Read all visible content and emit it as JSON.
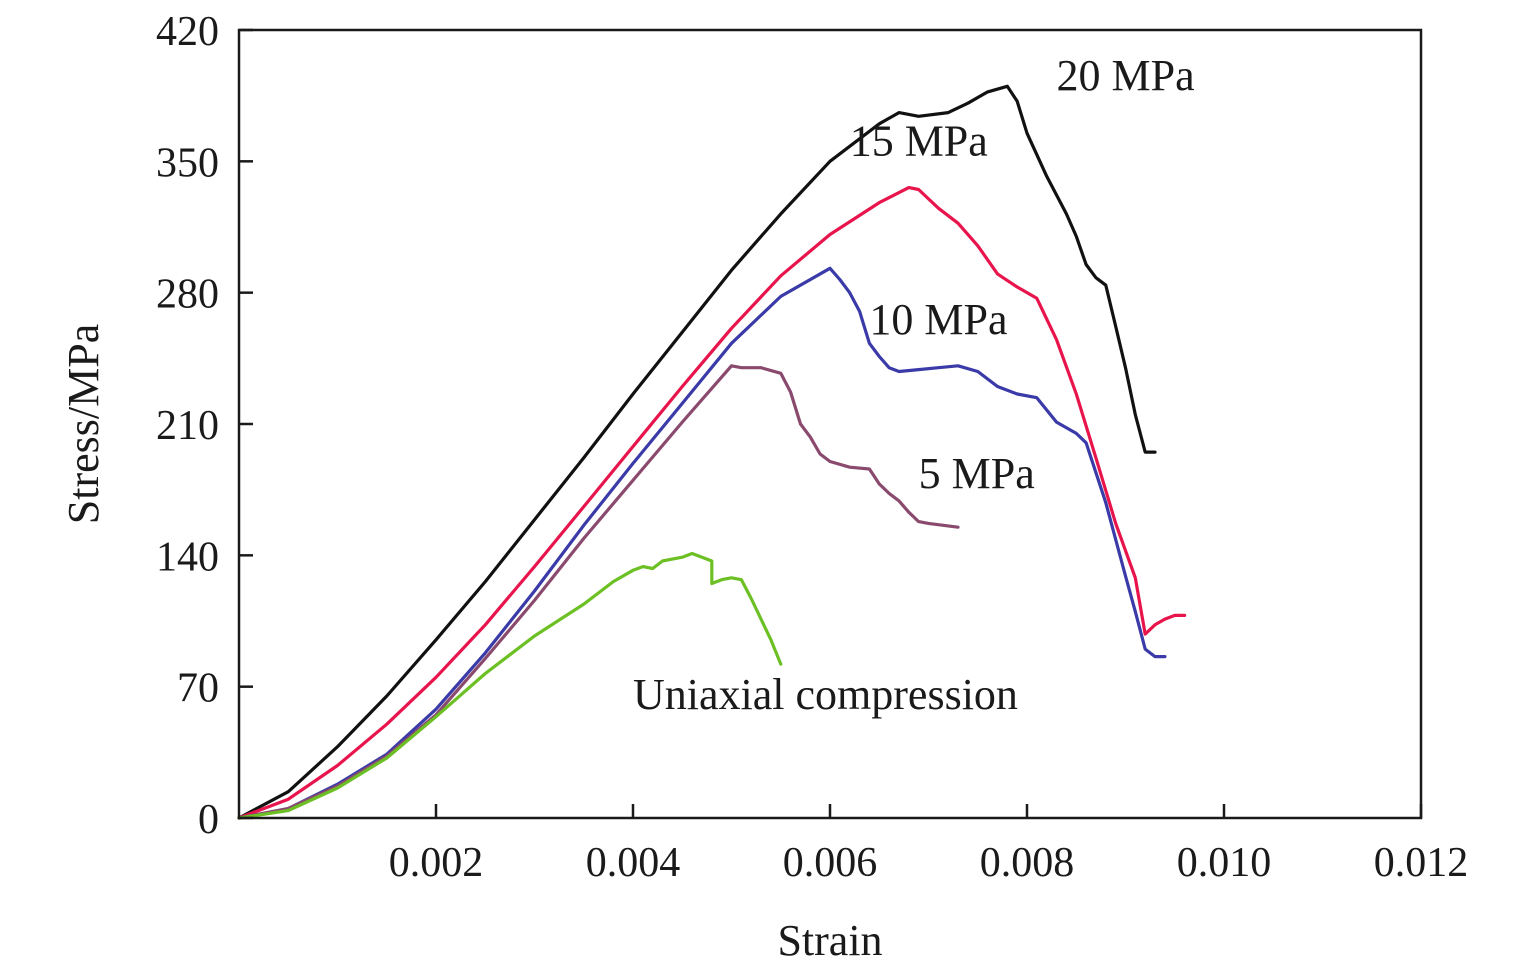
{
  "chart_data": {
    "type": "line",
    "title": "",
    "xlabel": "Strain",
    "ylabel": "Stress/MPa",
    "xlim": [
      0,
      0.012
    ],
    "ylim": [
      0,
      420
    ],
    "x_ticks": [
      0.002,
      0.004,
      0.006,
      0.008,
      0.01,
      0.012
    ],
    "x_tick_labels": [
      "0.002",
      "0.004",
      "0.006",
      "0.008",
      "0.010",
      "0.012"
    ],
    "y_ticks": [
      0,
      70,
      140,
      210,
      280,
      350,
      420
    ],
    "y_tick_labels": [
      "0",
      "70",
      "140",
      "210",
      "280",
      "350",
      "420"
    ],
    "grid": false,
    "series": [
      {
        "name": "20 MPa",
        "color": "#111111",
        "label_pos": [
          0.0083,
          388
        ],
        "x": [
          0,
          0.0005,
          0.001,
          0.0015,
          0.002,
          0.0025,
          0.003,
          0.0035,
          0.004,
          0.0045,
          0.005,
          0.0055,
          0.006,
          0.0065,
          0.0067,
          0.0069,
          0.0072,
          0.0074,
          0.0076,
          0.0078,
          0.0079,
          0.008,
          0.0082,
          0.0084,
          0.0085,
          0.0086,
          0.0087,
          0.0088,
          0.0089,
          0.009,
          0.0091,
          0.0092,
          0.0093
        ],
        "y": [
          0,
          14,
          38,
          65,
          95,
          126,
          159,
          192,
          226,
          259,
          292,
          322,
          350,
          370,
          376,
          374,
          376,
          381,
          387,
          390,
          382,
          365,
          342,
          322,
          310,
          295,
          288,
          284,
          262,
          240,
          215,
          195,
          195
        ]
      },
      {
        "name": "15 MPa",
        "color": "#e8144c",
        "label_pos": [
          0.0062,
          353
        ],
        "x": [
          0,
          0.0005,
          0.001,
          0.0015,
          0.002,
          0.0025,
          0.003,
          0.0035,
          0.004,
          0.0045,
          0.005,
          0.0055,
          0.006,
          0.0065,
          0.0068,
          0.0069,
          0.007,
          0.0071,
          0.0073,
          0.0075,
          0.0077,
          0.0079,
          0.0081,
          0.0083,
          0.0085,
          0.0087,
          0.0089,
          0.0091,
          0.0092,
          0.0093,
          0.0094,
          0.0095,
          0.0096
        ],
        "y": [
          0,
          10,
          28,
          50,
          75,
          103,
          134,
          166,
          198,
          230,
          261,
          289,
          311,
          328,
          336,
          335,
          330,
          325,
          317,
          305,
          290,
          283,
          277,
          255,
          226,
          192,
          157,
          128,
          98,
          103,
          106,
          108,
          108
        ]
      },
      {
        "name": "10 MPa",
        "color": "#3a3aa8",
        "label_pos": [
          0.0064,
          258
        ],
        "x": [
          0,
          0.0005,
          0.001,
          0.0015,
          0.002,
          0.0025,
          0.003,
          0.0035,
          0.004,
          0.0045,
          0.005,
          0.0055,
          0.006,
          0.0061,
          0.0062,
          0.0063,
          0.0064,
          0.0065,
          0.0066,
          0.0067,
          0.0069,
          0.0071,
          0.0073,
          0.0075,
          0.0077,
          0.0079,
          0.0081,
          0.0083,
          0.0085,
          0.0086,
          0.0088,
          0.009,
          0.0091,
          0.0092,
          0.0093,
          0.0094
        ],
        "y": [
          0,
          5,
          18,
          34,
          58,
          88,
          121,
          156,
          189,
          221,
          253,
          278,
          293,
          287,
          280,
          270,
          253,
          246,
          240,
          238,
          239,
          240,
          241,
          238,
          230,
          226,
          224,
          211,
          205,
          200,
          168,
          129,
          110,
          90,
          86,
          86
        ]
      },
      {
        "name": "5 MPa",
        "color": "#8a4a6e",
        "label_pos": [
          0.0069,
          176
        ],
        "x": [
          0,
          0.0005,
          0.001,
          0.0015,
          0.002,
          0.0025,
          0.003,
          0.0035,
          0.004,
          0.0045,
          0.005,
          0.0051,
          0.0053,
          0.0055,
          0.0056,
          0.0057,
          0.0058,
          0.0059,
          0.006,
          0.0062,
          0.0064,
          0.0065,
          0.0066,
          0.0067,
          0.0068,
          0.0069,
          0.007,
          0.0073
        ],
        "y": [
          0,
          5,
          17,
          33,
          55,
          85,
          116,
          149,
          180,
          211,
          241,
          240,
          240,
          237,
          227,
          210,
          203,
          194,
          190,
          187,
          186,
          178,
          173,
          169,
          163,
          158,
          157,
          155
        ]
      },
      {
        "name": "Uniaxial compression",
        "color": "#6cc024",
        "label_pos": [
          0.004,
          58
        ],
        "x": [
          0,
          0.0005,
          0.001,
          0.0015,
          0.002,
          0.0025,
          0.003,
          0.0035,
          0.0038,
          0.004,
          0.0041,
          0.0042,
          0.0043,
          0.0044,
          0.0045,
          0.0046,
          0.0047,
          0.0048,
          0.0048,
          0.0049,
          0.005,
          0.0051,
          0.0052,
          0.0053,
          0.0054,
          0.0055
        ],
        "y": [
          0,
          4,
          16,
          32,
          54,
          77,
          97,
          114,
          126,
          132,
          134,
          133,
          137,
          138,
          139,
          141,
          139,
          137,
          125,
          127,
          128,
          127,
          117,
          106,
          95,
          82
        ]
      }
    ]
  }
}
